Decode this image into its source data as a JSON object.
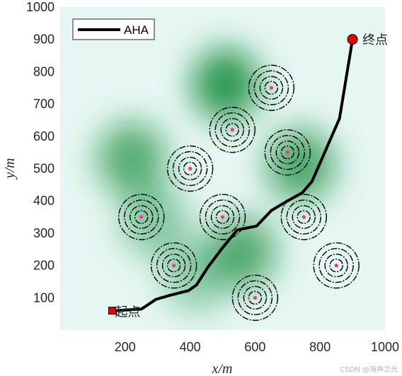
{
  "chart_data": {
    "type": "line",
    "xlabel": "x/m",
    "ylabel": "y/m",
    "xlim": [
      0,
      1000
    ],
    "ylim": [
      0,
      1000
    ],
    "x_ticks": [
      200,
      400,
      600,
      800,
      1000
    ],
    "y_ticks": [
      100,
      200,
      300,
      400,
      500,
      600,
      700,
      800,
      900,
      1000
    ],
    "legend": {
      "position": "top-left",
      "entries": [
        "AHA"
      ]
    },
    "series": [
      {
        "name": "AHA",
        "color": "#000000",
        "points": [
          [
            160,
            60
          ],
          [
            200,
            62
          ],
          [
            250,
            65
          ],
          [
            295,
            95
          ],
          [
            340,
            108
          ],
          [
            395,
            122
          ],
          [
            420,
            140
          ],
          [
            455,
            195
          ],
          [
            500,
            255
          ],
          [
            545,
            310
          ],
          [
            605,
            322
          ],
          [
            650,
            370
          ],
          [
            700,
            400
          ],
          [
            745,
            425
          ],
          [
            775,
            460
          ],
          [
            810,
            540
          ],
          [
            860,
            655
          ],
          [
            900,
            900
          ]
        ]
      }
    ],
    "start": {
      "x": 160,
      "y": 60,
      "label": "起点",
      "color": "#e00000"
    },
    "end": {
      "x": 900,
      "y": 900,
      "label": "终点",
      "color": "#e00000"
    },
    "threats": [
      {
        "x": 650,
        "y": 750
      },
      {
        "x": 530,
        "y": 620
      },
      {
        "x": 700,
        "y": 550
      },
      {
        "x": 400,
        "y": 500
      },
      {
        "x": 250,
        "y": 350
      },
      {
        "x": 500,
        "y": 350
      },
      {
        "x": 750,
        "y": 350
      },
      {
        "x": 350,
        "y": 200
      },
      {
        "x": 850,
        "y": 200
      },
      {
        "x": 600,
        "y": 100
      }
    ],
    "terrain_peaks": [
      {
        "x": 510,
        "y": 760,
        "h": 1.0
      },
      {
        "x": 220,
        "y": 530,
        "h": 0.8
      },
      {
        "x": 740,
        "y": 510,
        "h": 0.85
      },
      {
        "x": 560,
        "y": 240,
        "h": 0.8
      },
      {
        "x": 290,
        "y": 340,
        "h": 0.5
      },
      {
        "x": 420,
        "y": 170,
        "h": 0.45
      }
    ],
    "grid": false
  },
  "watermark": "CSDN @海神之光"
}
